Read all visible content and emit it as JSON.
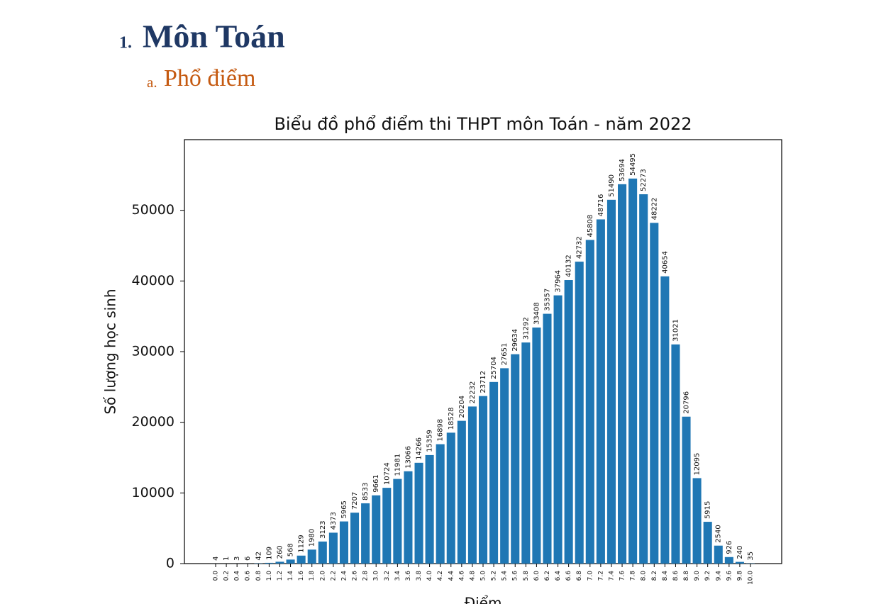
{
  "heading": {
    "number": "1.",
    "title": "Môn Toán"
  },
  "subheading": {
    "number": "a.",
    "title": "Phổ điểm"
  },
  "chart_data": {
    "type": "bar",
    "title": "Biểu đồ phổ điểm thi THPT môn Toán - năm 2022",
    "x_label": "Điểm",
    "y_label": "Số lượng học sinh",
    "categories": [
      "0.0",
      "0.2",
      "0.4",
      "0.6",
      "0.8",
      "1.0",
      "1.2",
      "1.4",
      "1.6",
      "1.8",
      "2.0",
      "2.2",
      "2.4",
      "2.6",
      "2.8",
      "3.0",
      "3.2",
      "3.4",
      "3.6",
      "3.8",
      "4.0",
      "4.2",
      "4.4",
      "4.6",
      "4.8",
      "5.0",
      "5.2",
      "5.4",
      "5.6",
      "5.8",
      "6.0",
      "6.2",
      "6.4",
      "6.6",
      "6.8",
      "7.0",
      "7.2",
      "7.4",
      "7.6",
      "7.8",
      "8.0",
      "8.2",
      "8.4",
      "8.6",
      "8.8",
      "9.0",
      "9.2",
      "9.4",
      "9.6",
      "9.8",
      "10.0"
    ],
    "values": [
      4,
      1,
      3,
      6,
      42,
      109,
      260,
      568,
      1129,
      1980,
      3123,
      4373,
      5965,
      7207,
      8533,
      9661,
      10724,
      11981,
      13066,
      14266,
      15359,
      16898,
      18528,
      20204,
      22232,
      23712,
      25704,
      27651,
      29634,
      31292,
      33408,
      35357,
      37964,
      40132,
      42732,
      45808,
      48716,
      51490,
      53694,
      54495,
      52273,
      48222,
      40654,
      31021,
      20796,
      12095,
      5915,
      2540,
      926,
      240,
      35
    ],
    "color": "#1f77b4",
    "ylim": [
      0,
      60000
    ],
    "yticks": [
      0,
      10000,
      20000,
      30000,
      40000,
      50000
    ],
    "grid": false
  }
}
